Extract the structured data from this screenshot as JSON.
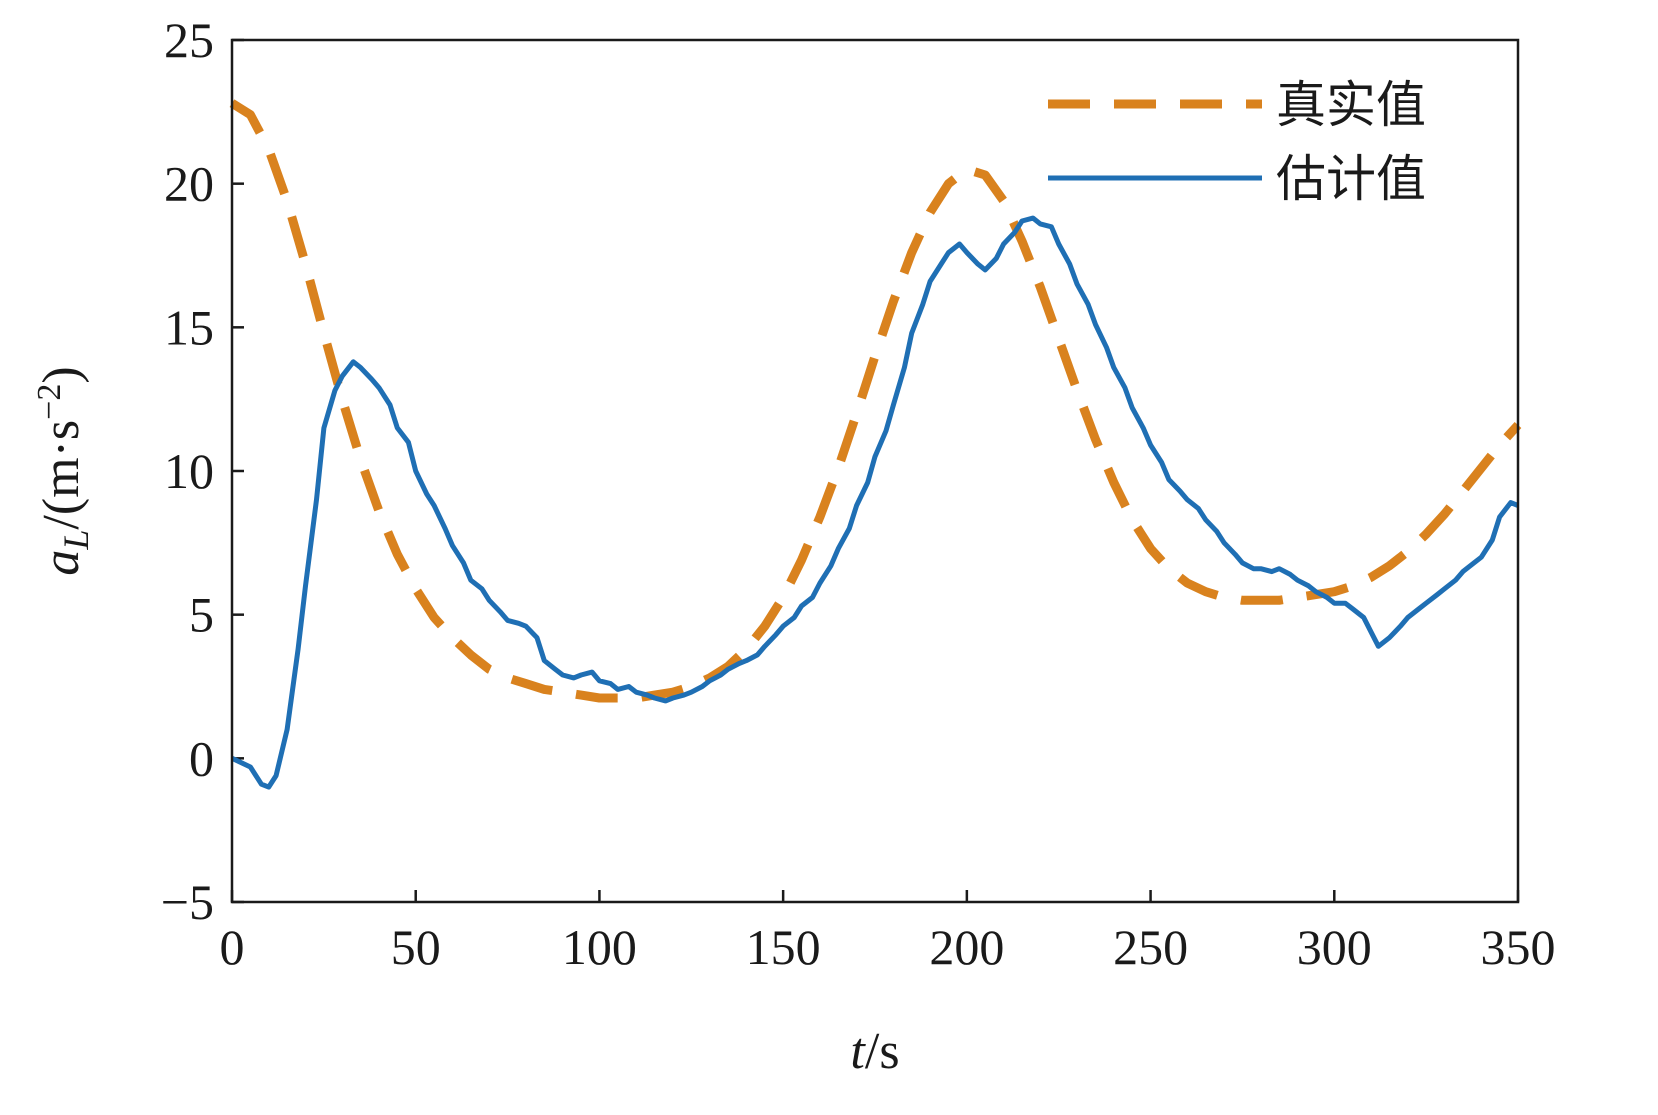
{
  "chart_data": {
    "type": "line",
    "xlabel": {
      "var": "t",
      "unit": "/s"
    },
    "ylabel": {
      "var": "a",
      "sub": "L",
      "unit": "/(m·s",
      "sup": "−2",
      "close": ")"
    },
    "xlim": [
      0,
      350
    ],
    "ylim": [
      -5,
      25
    ],
    "xticks": [
      0,
      50,
      100,
      150,
      200,
      250,
      300,
      350
    ],
    "yticks": [
      25,
      20,
      15,
      10,
      5,
      0,
      -5
    ],
    "ytick_labels": [
      "25",
      "20",
      "15",
      "10",
      "5",
      "0",
      "−5"
    ],
    "grid": false,
    "legend_position": "top-right",
    "series": [
      {
        "name": "真实值",
        "style": "dashed",
        "color": "#d9821e",
        "x": [
          0,
          5,
          10,
          15,
          20,
          25,
          30,
          35,
          40,
          45,
          50,
          55,
          60,
          65,
          70,
          75,
          80,
          85,
          90,
          95,
          100,
          105,
          110,
          115,
          120,
          125,
          130,
          135,
          140,
          145,
          150,
          155,
          160,
          165,
          170,
          175,
          180,
          185,
          190,
          195,
          200,
          205,
          210,
          215,
          220,
          225,
          230,
          235,
          240,
          245,
          250,
          255,
          260,
          265,
          270,
          275,
          280,
          285,
          290,
          295,
          300,
          305,
          310,
          315,
          320,
          325,
          330,
          335,
          340,
          345,
          350
        ],
        "y": [
          22.8,
          22.4,
          21.2,
          19.4,
          17.2,
          14.8,
          12.5,
          10.4,
          8.6,
          7.1,
          5.9,
          4.9,
          4.2,
          3.6,
          3.1,
          2.8,
          2.6,
          2.4,
          2.3,
          2.2,
          2.1,
          2.1,
          2.1,
          2.2,
          2.3,
          2.5,
          2.8,
          3.2,
          3.8,
          4.6,
          5.6,
          6.9,
          8.4,
          10.1,
          12.0,
          14.0,
          15.9,
          17.6,
          19.0,
          20.0,
          20.5,
          20.3,
          19.4,
          18.0,
          16.4,
          14.6,
          12.8,
          11.1,
          9.6,
          8.3,
          7.3,
          6.6,
          6.1,
          5.8,
          5.6,
          5.5,
          5.5,
          5.5,
          5.6,
          5.7,
          5.8,
          6.0,
          6.3,
          6.7,
          7.2,
          7.8,
          8.5,
          9.3,
          10.1,
          10.9,
          11.6
        ]
      },
      {
        "name": "估计值",
        "style": "solid",
        "color": "#1f6fb4",
        "x": [
          0,
          5,
          8,
          10,
          12,
          15,
          18,
          20,
          23,
          25,
          28,
          30,
          33,
          35,
          38,
          40,
          43,
          45,
          48,
          50,
          53,
          55,
          58,
          60,
          63,
          65,
          68,
          70,
          73,
          75,
          78,
          80,
          83,
          85,
          88,
          90,
          93,
          95,
          98,
          100,
          103,
          105,
          108,
          110,
          113,
          115,
          118,
          120,
          123,
          125,
          128,
          130,
          133,
          135,
          138,
          140,
          143,
          145,
          148,
          150,
          153,
          155,
          158,
          160,
          163,
          165,
          168,
          170,
          173,
          175,
          178,
          180,
          183,
          185,
          188,
          190,
          193,
          195,
          198,
          200,
          203,
          205,
          208,
          210,
          213,
          215,
          218,
          220,
          223,
          225,
          228,
          230,
          233,
          235,
          238,
          240,
          243,
          245,
          248,
          250,
          253,
          255,
          258,
          260,
          263,
          265,
          268,
          270,
          273,
          275,
          278,
          280,
          283,
          285,
          288,
          290,
          293,
          295,
          298,
          300,
          303,
          305,
          308,
          310,
          312,
          315,
          318,
          320,
          323,
          325,
          328,
          330,
          333,
          335,
          338,
          340,
          343,
          345,
          348,
          350
        ],
        "y": [
          0.0,
          -0.3,
          -0.9,
          -1.0,
          -0.6,
          1.0,
          3.8,
          6.0,
          9.0,
          11.5,
          12.8,
          13.3,
          13.8,
          13.6,
          13.2,
          12.9,
          12.3,
          11.5,
          11.0,
          10.0,
          9.2,
          8.8,
          8.0,
          7.4,
          6.8,
          6.2,
          5.9,
          5.5,
          5.1,
          4.8,
          4.7,
          4.6,
          4.2,
          3.4,
          3.1,
          2.9,
          2.8,
          2.9,
          3.0,
          2.7,
          2.6,
          2.4,
          2.5,
          2.3,
          2.2,
          2.1,
          2.0,
          2.1,
          2.2,
          2.3,
          2.5,
          2.7,
          2.9,
          3.1,
          3.3,
          3.4,
          3.6,
          3.9,
          4.3,
          4.6,
          4.9,
          5.3,
          5.6,
          6.1,
          6.7,
          7.3,
          8.0,
          8.8,
          9.6,
          10.5,
          11.4,
          12.3,
          13.6,
          14.8,
          15.8,
          16.6,
          17.2,
          17.6,
          17.9,
          17.6,
          17.2,
          17.0,
          17.4,
          17.9,
          18.3,
          18.7,
          18.8,
          18.6,
          18.5,
          17.9,
          17.2,
          16.5,
          15.8,
          15.1,
          14.3,
          13.6,
          12.9,
          12.2,
          11.5,
          10.9,
          10.3,
          9.7,
          9.3,
          9.0,
          8.7,
          8.3,
          7.9,
          7.5,
          7.1,
          6.8,
          6.6,
          6.6,
          6.5,
          6.6,
          6.4,
          6.2,
          6.0,
          5.8,
          5.6,
          5.4,
          5.4,
          5.2,
          4.9,
          4.4,
          3.9,
          4.2,
          4.6,
          4.9,
          5.2,
          5.4,
          5.7,
          5.9,
          6.2,
          6.5,
          6.8,
          7.0,
          7.6,
          8.4,
          8.9,
          8.8
        ]
      }
    ]
  }
}
